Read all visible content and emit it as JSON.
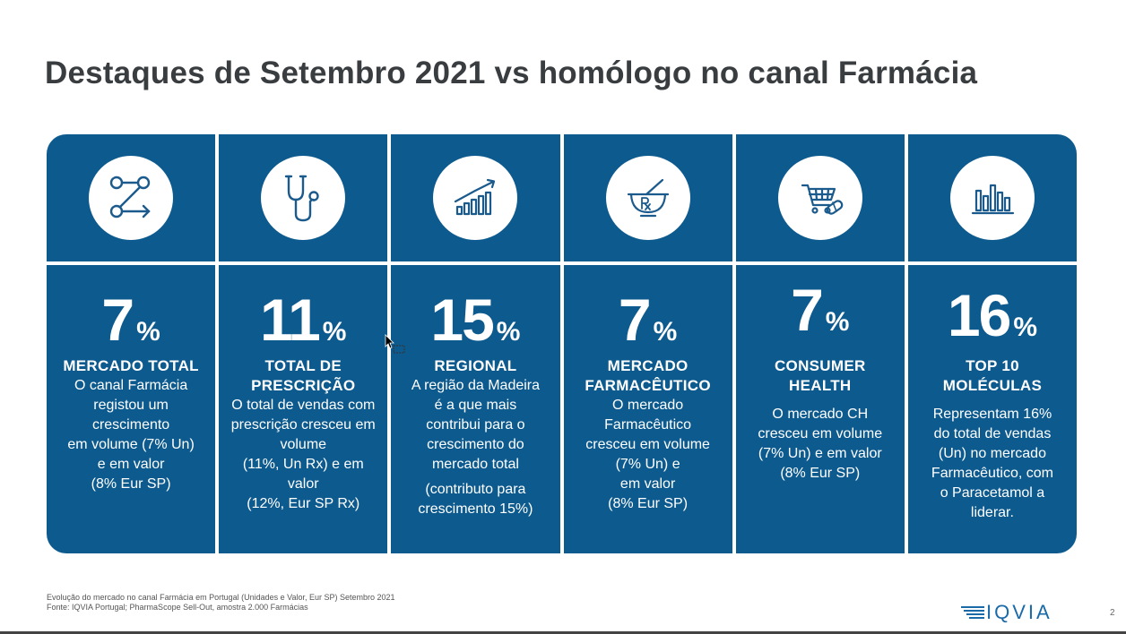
{
  "slide": {
    "title": "Destaques de Setembro 2021 vs homólogo no canal Farmácia",
    "page_number": "2"
  },
  "columns": [
    {
      "icon": "network-arrow-icon",
      "value": "7",
      "unit": "%",
      "heading_lines": [
        "MERCADO TOTAL"
      ],
      "body_lines": [
        "O canal Farmácia",
        "registou um",
        "crescimento",
        "em volume (7% Un)",
        "e em valor",
        "(8% Eur SP)"
      ]
    },
    {
      "icon": "stethoscope-icon",
      "value": "11",
      "unit": "%",
      "heading_lines": [
        "TOTAL DE",
        "PRESCRIÇÃO"
      ],
      "body_lines": [
        "O total de vendas com",
        "prescrição cresceu em",
        "volume",
        "(11%, Un Rx) e em",
        "valor",
        "(12%, Eur SP Rx)"
      ]
    },
    {
      "icon": "growth-chart-icon",
      "value": "15",
      "unit": "%",
      "heading_lines": [
        "REGIONAL"
      ],
      "body_lines": [
        "A região da Madeira",
        "é a que mais",
        "contribui para o",
        "crescimento do",
        "mercado total"
      ],
      "extra_lines": [
        "(contributo para",
        "crescimento 15%)"
      ]
    },
    {
      "icon": "mortar-pestle-rx-icon",
      "value": "7",
      "unit": "%",
      "heading_lines": [
        "MERCADO",
        "FARMACÊUTICO"
      ],
      "body_lines": [
        "O mercado",
        "Farmacêutico",
        "cresceu em volume",
        "(7% Un) e",
        "em valor",
        "(8% Eur SP)"
      ]
    },
    {
      "icon": "basket-pill-icon",
      "value": "7",
      "unit": "%",
      "heading_lines": [
        "CONSUMER",
        "HEALTH"
      ],
      "body_lines": [
        "O mercado CH",
        "cresceu em volume",
        "(7% Un) e em valor",
        "(8% Eur SP)"
      ]
    },
    {
      "icon": "bar-chart-icon",
      "value": "16",
      "unit": "%",
      "heading_lines": [
        "TOP 10",
        "MOLÉCULAS"
      ],
      "body_lines": [
        "Representam 16%",
        "do total de vendas",
        "(Un) no mercado",
        "Farmacêutico, com",
        "o Paracetamol a",
        "liderar."
      ]
    }
  ],
  "footnote": {
    "line1": "Evolução do mercado no canal Farmácia em Portugal (Unidades e Valor, Eur SP) Setembro 2021",
    "line2": "Fonte: IQVIA Portugal; PharmaScope Sell-Out, amostra 2.000 Farmácias"
  },
  "brand": {
    "name": "IQVIA"
  },
  "colors": {
    "panel": "#0d5a8e",
    "title": "#3a3d40",
    "icon_stroke": "#1b5a8c",
    "logo": "#1a6aa8"
  }
}
